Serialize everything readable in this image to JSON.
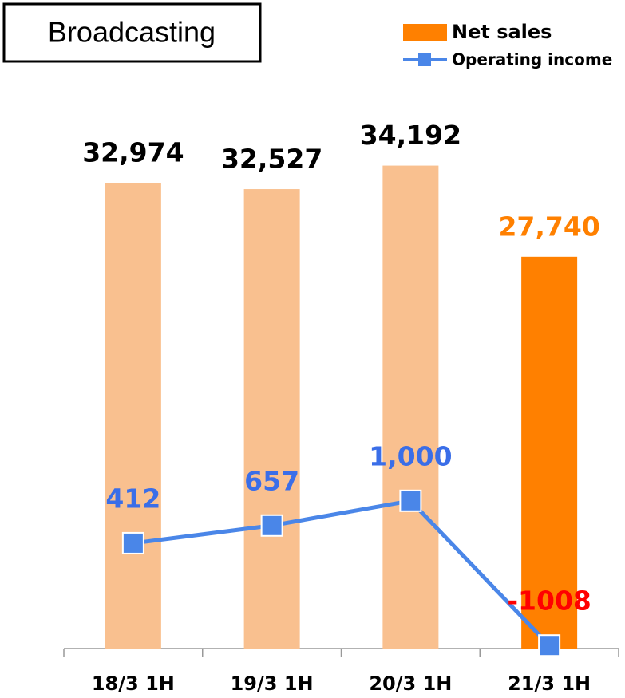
{
  "chart_data": {
    "type": "bar",
    "title": "Broadcasting",
    "categories": [
      "18/3 1H",
      "19/3 1H",
      "20/3 1H",
      "21/3 1H"
    ],
    "series": [
      {
        "name": "Net sales",
        "type": "bar",
        "color": "#ff8000",
        "colors": [
          "#f9c08f",
          "#f9c08f",
          "#f9c08f",
          "#ff8000"
        ],
        "values": [
          32974,
          32527,
          34192,
          27740
        ],
        "value_labels": [
          "32,974",
          "32,527",
          "34,192",
          "27,740"
        ],
        "value_label_colors": [
          "#000000",
          "#000000",
          "#000000",
          "#ff8000"
        ]
      },
      {
        "name": "Operating income",
        "type": "line",
        "axis": "y2",
        "color": "#4a86e8",
        "values": [
          412,
          657,
          1000,
          -1008
        ],
        "value_labels": [
          "412",
          "657",
          "1,000",
          "-1008"
        ],
        "value_label_colors": [
          "#3a6ee8",
          "#3a6ee8",
          "#3a6ee8",
          "#ff0000"
        ]
      }
    ],
    "ylim": [
      0,
      37500
    ],
    "y2lim": [
      -1050,
      6300
    ]
  }
}
